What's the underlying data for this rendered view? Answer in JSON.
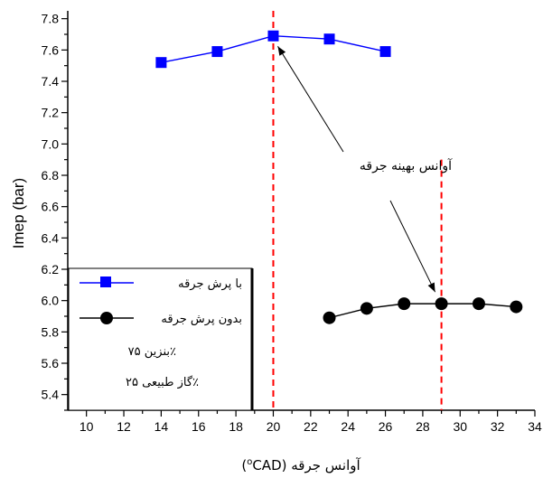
{
  "chart_data": {
    "type": "line",
    "xlabel": "آوانس جرقه (oCAD)",
    "xlabel_parts": {
      "prefix": "(",
      "sup": "o",
      "unit": "CAD",
      "suffix": ") آوانس جرقه"
    },
    "ylabel": "Imep (bar)",
    "xlim": [
      9,
      34
    ],
    "ylim": [
      5.3,
      7.85
    ],
    "x_ticks": [
      "10",
      "12",
      "14",
      "16",
      "18",
      "20",
      "22",
      "24",
      "26",
      "28",
      "30",
      "32",
      "34"
    ],
    "y_ticks": [
      "5.4",
      "5.6",
      "5.8",
      "6.0",
      "6.2",
      "6.4",
      "6.6",
      "6.8",
      "7.0",
      "7.2",
      "7.4",
      "7.6",
      "7.8"
    ],
    "series": [
      {
        "name": "با پرش جرقه",
        "marker": "square",
        "color": "#0000ff",
        "points": [
          [
            14,
            7.52
          ],
          [
            17,
            7.59
          ],
          [
            20,
            7.69
          ],
          [
            23,
            7.67
          ],
          [
            26,
            7.59
          ]
        ]
      },
      {
        "name": "بدون پرش جرقه",
        "marker": "circle",
        "color": "#000000",
        "points": [
          [
            23,
            5.89
          ],
          [
            25,
            5.95
          ],
          [
            27,
            5.98
          ],
          [
            29,
            5.98
          ],
          [
            31,
            5.98
          ],
          [
            33,
            5.96
          ]
        ]
      }
    ],
    "reference_lines": [
      {
        "x": 20,
        "color": "#ff0000",
        "style": "dashed"
      },
      {
        "x": 29,
        "color": "#ff0000",
        "style": "dashed"
      }
    ],
    "annotation": {
      "text": "آوانس بهینه جرقه",
      "arrow_targets": [
        [
          20,
          7.67
        ],
        [
          29,
          6.02
        ]
      ]
    },
    "legend": {
      "placement": "bottom-left",
      "fuel_lines": [
        "بنزین ۷۵٪",
        "گاز طبیعی ۲۵٪"
      ]
    },
    "colors": {
      "series_blue": "#0000ff",
      "series_black": "#000000",
      "reference_red": "#ff0000"
    }
  }
}
